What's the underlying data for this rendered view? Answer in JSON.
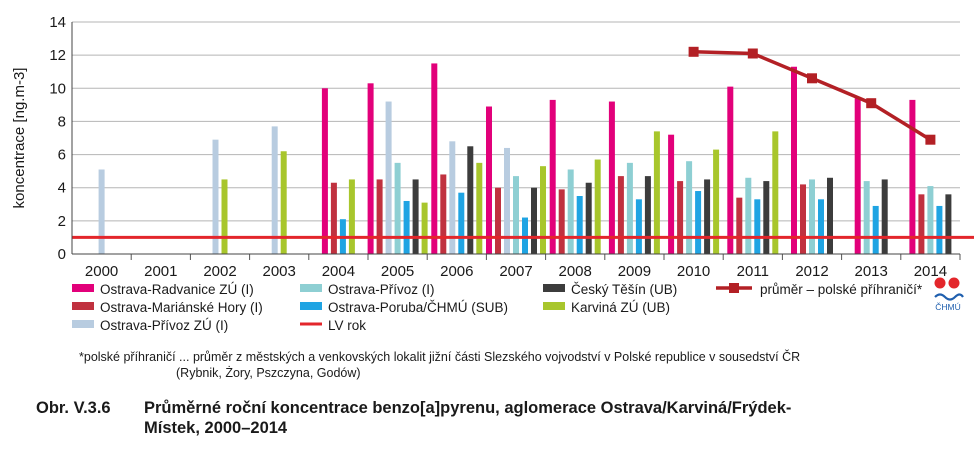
{
  "chart_data": {
    "type": "bar",
    "ylabel": "koncentrace [ng.m-3]",
    "xlabel": "",
    "ylim": [
      0,
      14
    ],
    "yticks": [
      0,
      2,
      4,
      6,
      8,
      10,
      12,
      14
    ],
    "categories": [
      "2000",
      "2001",
      "2002",
      "2003",
      "2004",
      "2005",
      "2006",
      "2007",
      "2008",
      "2009",
      "2010",
      "2011",
      "2012",
      "2013",
      "2014"
    ],
    "grid": "horizontal",
    "series": [
      {
        "name": "Ostrava-Radvanice ZÚ (I)",
        "color": "#e2007a",
        "values": [
          null,
          null,
          null,
          null,
          10.0,
          10.3,
          11.5,
          8.9,
          9.3,
          9.2,
          7.2,
          10.1,
          11.3,
          9.4,
          9.3
        ]
      },
      {
        "name": "Ostrava-Mariánské Hory (I)",
        "color": "#c0313f",
        "values": [
          null,
          null,
          null,
          null,
          4.3,
          4.5,
          4.8,
          4.0,
          3.9,
          4.7,
          4.4,
          3.4,
          4.2,
          null,
          3.6
        ]
      },
      {
        "name": "Ostrava-Přívoz ZÚ (I)",
        "color": "#b8cce0",
        "values": [
          5.1,
          null,
          6.9,
          7.7,
          null,
          9.2,
          6.8,
          6.4,
          null,
          null,
          null,
          null,
          null,
          null,
          null
        ]
      },
      {
        "name": "Ostrava-Přívoz (I)",
        "color": "#8ecfd3",
        "values": [
          null,
          null,
          null,
          null,
          null,
          5.5,
          null,
          4.7,
          5.1,
          5.5,
          5.6,
          4.6,
          4.5,
          4.4,
          4.1
        ]
      },
      {
        "name": "Ostrava-Poruba/ČHMÚ (SUB)",
        "color": "#1fa4e3",
        "values": [
          null,
          null,
          null,
          null,
          2.1,
          3.2,
          3.7,
          2.2,
          3.5,
          3.3,
          3.8,
          3.3,
          3.3,
          2.9,
          2.9
        ]
      },
      {
        "name": "Český Těšín (UB)",
        "color": "#3c3c3c",
        "values": [
          null,
          null,
          null,
          null,
          null,
          4.5,
          6.5,
          4.0,
          4.3,
          4.7,
          4.5,
          4.4,
          4.6,
          4.5,
          3.6
        ]
      },
      {
        "name": "Karviná ZÚ (UB)",
        "color": "#a8c62c",
        "values": [
          null,
          null,
          4.5,
          6.2,
          4.5,
          3.1,
          5.5,
          5.3,
          5.7,
          7.4,
          6.3,
          7.4,
          null,
          null,
          null
        ]
      }
    ],
    "lines": [
      {
        "name": "LV rok",
        "type": "hline",
        "color": "#e3262b",
        "value": 1.0
      },
      {
        "name": "průměr – polské příhraničí*",
        "type": "line",
        "color": "#b32025",
        "categories": [
          "2010",
          "2011",
          "2012",
          "2013",
          "2014"
        ],
        "values": [
          12.2,
          12.1,
          10.6,
          9.1,
          6.9
        ]
      }
    ],
    "legend": {
      "placement": "bottom",
      "items": [
        {
          "label": "Ostrava-Radvanice ZÚ (I)",
          "kind": "box",
          "color": "#e2007a"
        },
        {
          "label": "Ostrava-Přívoz (I)",
          "kind": "box",
          "color": "#8ecfd3"
        },
        {
          "label": "Český Těšín (UB)",
          "kind": "box",
          "color": "#3c3c3c"
        },
        {
          "label": "průměr – polské příhraničí*",
          "kind": "line-marker",
          "color": "#b32025"
        },
        {
          "label": "Ostrava-Mariánské Hory (I)",
          "kind": "box",
          "color": "#c0313f"
        },
        {
          "label": "Ostrava-Poruba/ČHMÚ (SUB)",
          "kind": "box",
          "color": "#1fa4e3"
        },
        {
          "label": "Karviná ZÚ (UB)",
          "kind": "box",
          "color": "#a8c62c"
        },
        {
          "label": "Ostrava-Přívoz ZÚ (I)",
          "kind": "box",
          "color": "#b8cce0"
        },
        {
          "label": "LV rok",
          "kind": "line",
          "color": "#e3262b"
        }
      ]
    }
  },
  "logo": {
    "text": "ČHMÚ"
  },
  "footnote": {
    "line1": "*polské příhraničí ... průměr z městských a venkovských lokalit jižní části Slezského vojvodství v Polské republice v sousedství ČR",
    "line2": "(Rybnik, Żory, Pszczyna, Godów)"
  },
  "caption": {
    "prefix": "Obr. V.3.6",
    "text_line1": "Průměrné roční koncentrace benzo[a]pyrenu, aglomerace Ostrava/Karviná/Frýdek-",
    "text_line2": "Místek, 2000–2014"
  }
}
